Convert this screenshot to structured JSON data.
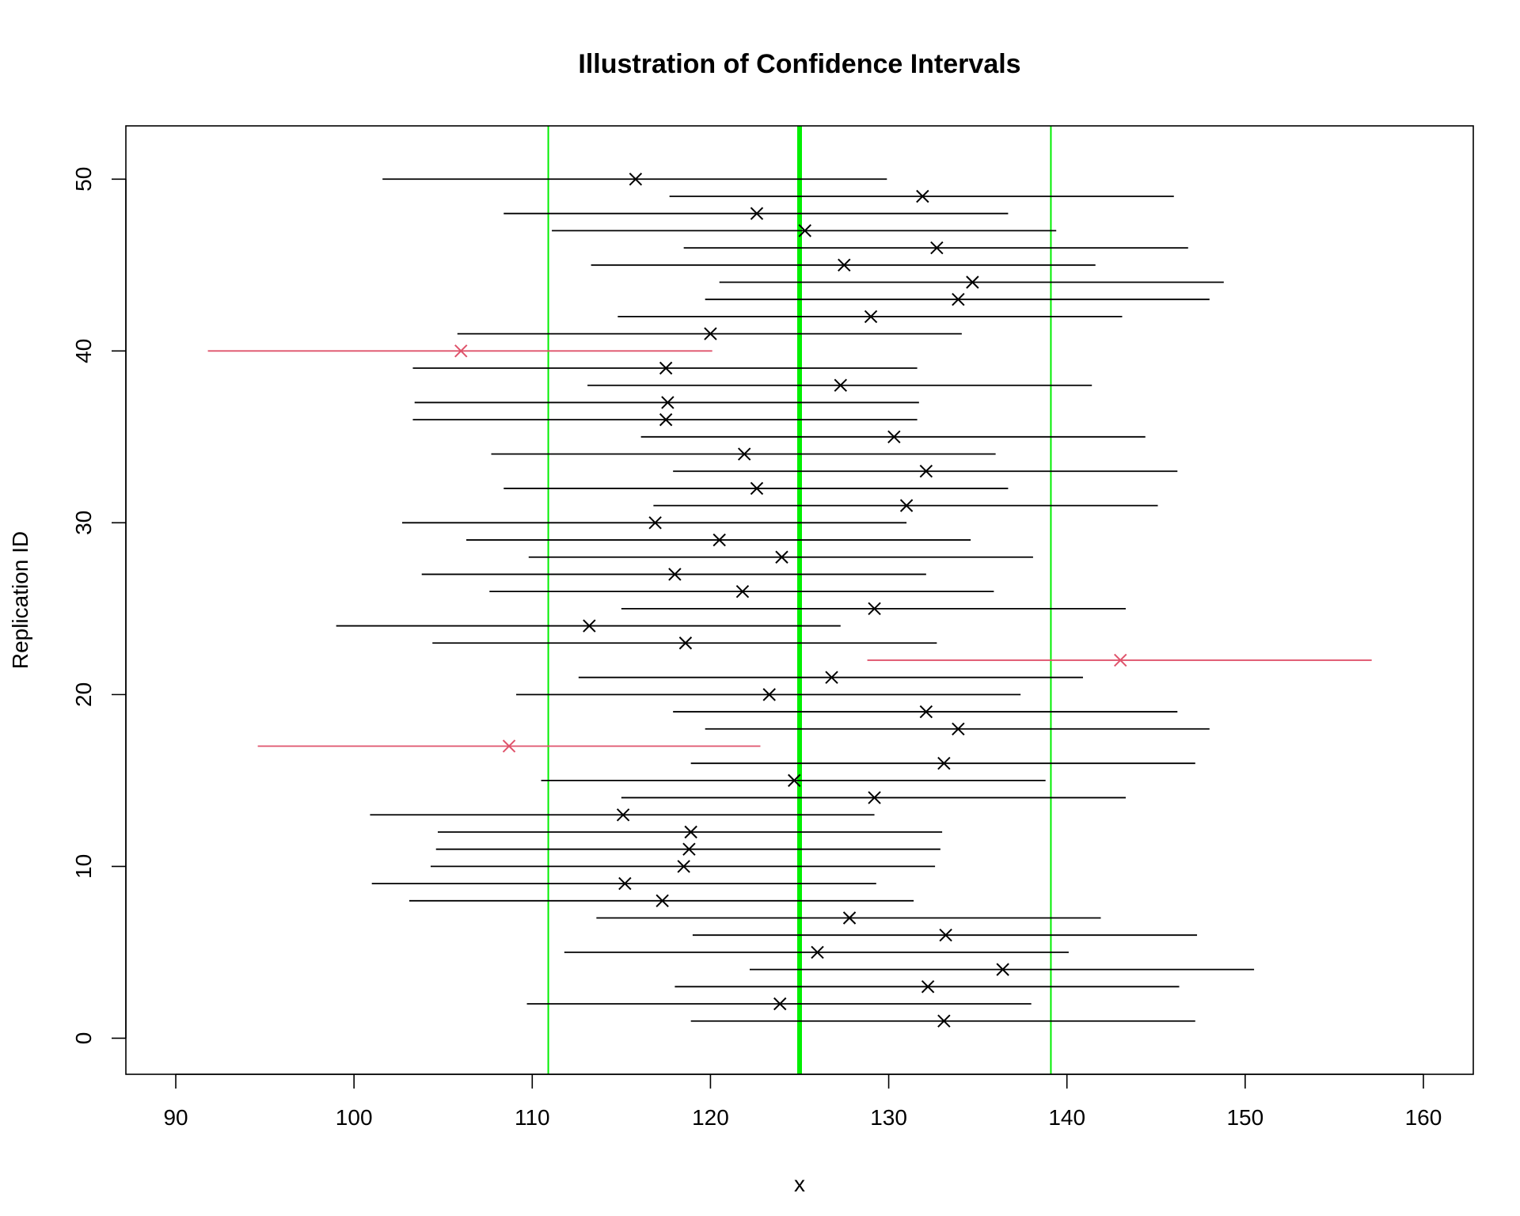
{
  "chart_data": {
    "type": "scatter",
    "title": "Illustration of Confidence Intervals",
    "xlabel": "x",
    "ylabel": "Replication ID",
    "xlim": [
      87.2,
      162.8
    ],
    "ylim": [
      -2.1,
      53.1
    ],
    "x_ticks": [
      "90",
      "100",
      "110",
      "120",
      "130",
      "140",
      "150",
      "160"
    ],
    "y_ticks": [
      "0",
      "10",
      "20",
      "30",
      "40",
      "50"
    ],
    "grid": false,
    "reference_lines": {
      "true_value": 125,
      "lower_bound": 110.9,
      "upper_bound": 139.1,
      "color": "#00ee00"
    },
    "colors": {
      "covering": "#000000",
      "missing": "#df536b"
    },
    "marker": "x",
    "intervals": [
      {
        "id": 1,
        "mean": 133.1,
        "lower": 118.9,
        "upper": 147.2,
        "covers": true
      },
      {
        "id": 2,
        "mean": 123.9,
        "lower": 109.7,
        "upper": 138.0,
        "covers": true
      },
      {
        "id": 3,
        "mean": 132.2,
        "lower": 118.0,
        "upper": 146.3,
        "covers": true
      },
      {
        "id": 4,
        "mean": 136.4,
        "lower": 122.2,
        "upper": 150.5,
        "covers": true
      },
      {
        "id": 5,
        "mean": 126.0,
        "lower": 111.8,
        "upper": 140.1,
        "covers": true
      },
      {
        "id": 6,
        "mean": 133.2,
        "lower": 119.0,
        "upper": 147.3,
        "covers": true
      },
      {
        "id": 7,
        "mean": 127.8,
        "lower": 113.6,
        "upper": 141.9,
        "covers": true
      },
      {
        "id": 8,
        "mean": 117.3,
        "lower": 103.1,
        "upper": 131.4,
        "covers": true
      },
      {
        "id": 9,
        "mean": 115.2,
        "lower": 101.0,
        "upper": 129.3,
        "covers": true
      },
      {
        "id": 10,
        "mean": 118.5,
        "lower": 104.3,
        "upper": 132.6,
        "covers": true
      },
      {
        "id": 11,
        "mean": 118.8,
        "lower": 104.6,
        "upper": 132.9,
        "covers": true
      },
      {
        "id": 12,
        "mean": 118.9,
        "lower": 104.7,
        "upper": 133.0,
        "covers": true
      },
      {
        "id": 13,
        "mean": 115.1,
        "lower": 100.9,
        "upper": 129.2,
        "covers": true
      },
      {
        "id": 14,
        "mean": 129.2,
        "lower": 115.0,
        "upper": 143.3,
        "covers": true
      },
      {
        "id": 15,
        "mean": 124.7,
        "lower": 110.5,
        "upper": 138.8,
        "covers": true
      },
      {
        "id": 16,
        "mean": 133.1,
        "lower": 118.9,
        "upper": 147.2,
        "covers": true
      },
      {
        "id": 17,
        "mean": 108.7,
        "lower": 94.6,
        "upper": 122.8,
        "covers": false
      },
      {
        "id": 18,
        "mean": 133.9,
        "lower": 119.7,
        "upper": 148.0,
        "covers": true
      },
      {
        "id": 19,
        "mean": 132.1,
        "lower": 117.9,
        "upper": 146.2,
        "covers": true
      },
      {
        "id": 20,
        "mean": 123.3,
        "lower": 109.1,
        "upper": 137.4,
        "covers": true
      },
      {
        "id": 21,
        "mean": 126.8,
        "lower": 112.6,
        "upper": 140.9,
        "covers": true
      },
      {
        "id": 22,
        "mean": 143.0,
        "lower": 128.8,
        "upper": 157.1,
        "covers": false
      },
      {
        "id": 23,
        "mean": 118.6,
        "lower": 104.4,
        "upper": 132.7,
        "covers": true
      },
      {
        "id": 24,
        "mean": 113.2,
        "lower": 99.0,
        "upper": 127.3,
        "covers": true
      },
      {
        "id": 25,
        "mean": 129.2,
        "lower": 115.0,
        "upper": 143.3,
        "covers": true
      },
      {
        "id": 26,
        "mean": 121.8,
        "lower": 107.6,
        "upper": 135.9,
        "covers": true
      },
      {
        "id": 27,
        "mean": 118.0,
        "lower": 103.8,
        "upper": 132.1,
        "covers": true
      },
      {
        "id": 28,
        "mean": 124.0,
        "lower": 109.8,
        "upper": 138.1,
        "covers": true
      },
      {
        "id": 29,
        "mean": 120.5,
        "lower": 106.3,
        "upper": 134.6,
        "covers": true
      },
      {
        "id": 30,
        "mean": 116.9,
        "lower": 102.7,
        "upper": 131.0,
        "covers": true
      },
      {
        "id": 31,
        "mean": 131.0,
        "lower": 116.8,
        "upper": 145.1,
        "covers": true
      },
      {
        "id": 32,
        "mean": 122.6,
        "lower": 108.4,
        "upper": 136.7,
        "covers": true
      },
      {
        "id": 33,
        "mean": 132.1,
        "lower": 117.9,
        "upper": 146.2,
        "covers": true
      },
      {
        "id": 34,
        "mean": 121.9,
        "lower": 107.7,
        "upper": 136.0,
        "covers": true
      },
      {
        "id": 35,
        "mean": 130.3,
        "lower": 116.1,
        "upper": 144.4,
        "covers": true
      },
      {
        "id": 36,
        "mean": 117.5,
        "lower": 103.3,
        "upper": 131.6,
        "covers": true
      },
      {
        "id": 37,
        "mean": 117.6,
        "lower": 103.4,
        "upper": 131.7,
        "covers": true
      },
      {
        "id": 38,
        "mean": 127.3,
        "lower": 113.1,
        "upper": 141.4,
        "covers": true
      },
      {
        "id": 39,
        "mean": 117.5,
        "lower": 103.3,
        "upper": 131.6,
        "covers": true
      },
      {
        "id": 40,
        "mean": 106.0,
        "lower": 91.8,
        "upper": 120.1,
        "covers": false
      },
      {
        "id": 41,
        "mean": 120.0,
        "lower": 105.8,
        "upper": 134.1,
        "covers": true
      },
      {
        "id": 42,
        "mean": 129.0,
        "lower": 114.8,
        "upper": 143.1,
        "covers": true
      },
      {
        "id": 43,
        "mean": 133.9,
        "lower": 119.7,
        "upper": 148.0,
        "covers": true
      },
      {
        "id": 44,
        "mean": 134.7,
        "lower": 120.5,
        "upper": 148.8,
        "covers": true
      },
      {
        "id": 45,
        "mean": 127.5,
        "lower": 113.3,
        "upper": 141.6,
        "covers": true
      },
      {
        "id": 46,
        "mean": 132.7,
        "lower": 118.5,
        "upper": 146.8,
        "covers": true
      },
      {
        "id": 47,
        "mean": 125.3,
        "lower": 111.1,
        "upper": 139.4,
        "covers": true
      },
      {
        "id": 48,
        "mean": 122.6,
        "lower": 108.4,
        "upper": 136.7,
        "covers": true
      },
      {
        "id": 49,
        "mean": 131.9,
        "lower": 117.7,
        "upper": 146.0,
        "covers": true
      },
      {
        "id": 50,
        "mean": 115.8,
        "lower": 101.6,
        "upper": 129.9,
        "covers": true
      }
    ]
  }
}
